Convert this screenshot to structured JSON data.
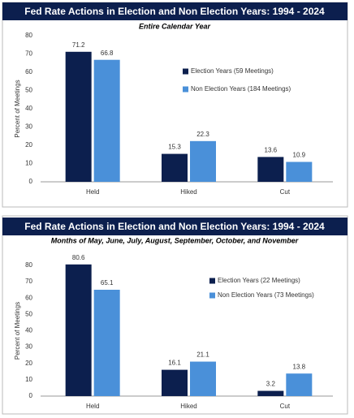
{
  "chart_data": [
    {
      "type": "bar",
      "title": "Fed Rate Actions in Election and Non Election Years: 1994 - 2024",
      "subtitle": "Entire Calendar Year",
      "ylabel": "Percent of Meetings",
      "categories": [
        "Held",
        "Hiked",
        "Cut"
      ],
      "series": [
        {
          "name": "Election Years (59 Meetings)",
          "color": "#0c1f4e",
          "values": [
            71.2,
            15.3,
            13.6
          ]
        },
        {
          "name": "Non Election Years (184 Meetings)",
          "color": "#4a90d9",
          "values": [
            66.8,
            22.3,
            10.9
          ]
        }
      ],
      "ylim": [
        0,
        80
      ],
      "yticks": [
        0,
        10,
        20,
        30,
        40,
        50,
        60,
        70,
        80
      ]
    },
    {
      "type": "bar",
      "title": "Fed Rate Actions in Election and Non Election Years: 1994 - 2024",
      "subtitle": "Months of May, June, July, August, September, October, and November",
      "ylabel": "Percent of Meetings",
      "categories": [
        "Held",
        "Hiked",
        "Cut"
      ],
      "series": [
        {
          "name": "Election Years (22 Meetings)",
          "color": "#0c1f4e",
          "values": [
            80.6,
            16.1,
            3.2
          ]
        },
        {
          "name": "Non Election Years (73 Meetings)",
          "color": "#4a90d9",
          "values": [
            65.1,
            21.1,
            13.8
          ]
        }
      ],
      "ylim": [
        0,
        80
      ],
      "yticks": [
        0,
        10,
        20,
        30,
        40,
        50,
        60,
        70,
        80
      ]
    }
  ]
}
